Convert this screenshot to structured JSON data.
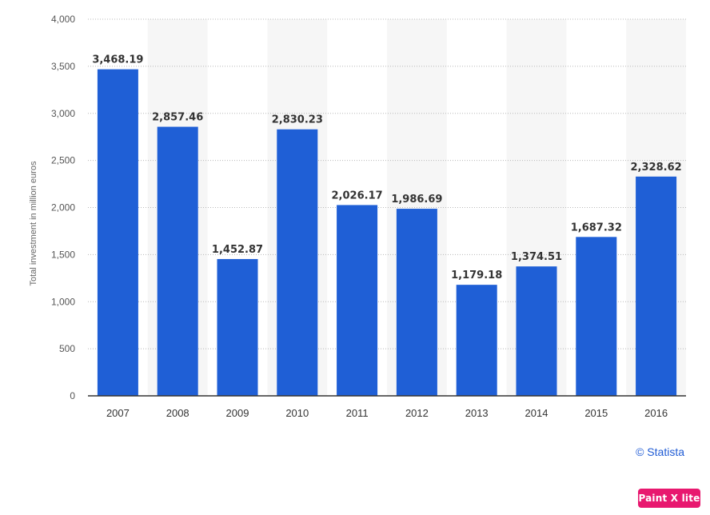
{
  "chart_data": {
    "type": "bar",
    "categories": [
      "2007",
      "2008",
      "2009",
      "2010",
      "2011",
      "2012",
      "2013",
      "2014",
      "2015",
      "2016"
    ],
    "values": [
      3468.19,
      2857.46,
      1452.87,
      2830.23,
      2026.17,
      1986.69,
      1179.18,
      1374.51,
      1687.32,
      2328.62
    ],
    "value_labels": [
      "3,468.19",
      "2,857.46",
      "1,452.87",
      "2,830.23",
      "2,026.17",
      "1,986.69",
      "1,179.18",
      "1,374.51",
      "1,687.32",
      "2,328.62"
    ],
    "title": "",
    "xlabel": "",
    "ylabel": "Total investment in million euros",
    "ylim": [
      0,
      4000
    ],
    "yticks": [
      0,
      500,
      1000,
      1500,
      2000,
      2500,
      3000,
      3500,
      4000
    ],
    "ytick_labels": [
      "0",
      "500",
      "1,000",
      "1,500",
      "2,000",
      "2,500",
      "3,000",
      "3,500",
      "4,000"
    ],
    "grid": true,
    "bar_color": "#1f5fd6",
    "alternating_band_color": "#f6f6f6"
  },
  "credit": "© Statista",
  "badge": "Paint X lite"
}
